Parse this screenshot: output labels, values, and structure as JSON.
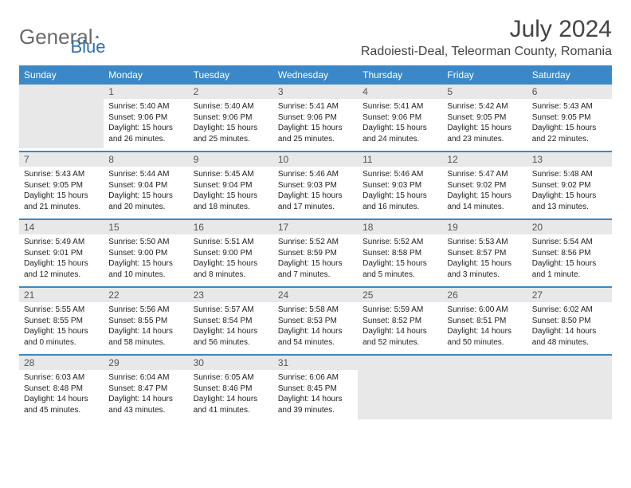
{
  "logo": {
    "text_general": "General",
    "text_blue": "Blue"
  },
  "title": "July 2024",
  "location": "Radoiesti-Deal, Teleorman County, Romania",
  "colors": {
    "header_bg": "#3b88c9",
    "header_text": "#ffffff",
    "daynum_bg": "#e8e8e8",
    "row_border": "#3b88c9"
  },
  "day_headers": [
    "Sunday",
    "Monday",
    "Tuesday",
    "Wednesday",
    "Thursday",
    "Friday",
    "Saturday"
  ],
  "weeks": [
    [
      {
        "num": "",
        "lines": []
      },
      {
        "num": "1",
        "lines": [
          "Sunrise: 5:40 AM",
          "Sunset: 9:06 PM",
          "Daylight: 15 hours",
          "and 26 minutes."
        ]
      },
      {
        "num": "2",
        "lines": [
          "Sunrise: 5:40 AM",
          "Sunset: 9:06 PM",
          "Daylight: 15 hours",
          "and 25 minutes."
        ]
      },
      {
        "num": "3",
        "lines": [
          "Sunrise: 5:41 AM",
          "Sunset: 9:06 PM",
          "Daylight: 15 hours",
          "and 25 minutes."
        ]
      },
      {
        "num": "4",
        "lines": [
          "Sunrise: 5:41 AM",
          "Sunset: 9:06 PM",
          "Daylight: 15 hours",
          "and 24 minutes."
        ]
      },
      {
        "num": "5",
        "lines": [
          "Sunrise: 5:42 AM",
          "Sunset: 9:05 PM",
          "Daylight: 15 hours",
          "and 23 minutes."
        ]
      },
      {
        "num": "6",
        "lines": [
          "Sunrise: 5:43 AM",
          "Sunset: 9:05 PM",
          "Daylight: 15 hours",
          "and 22 minutes."
        ]
      }
    ],
    [
      {
        "num": "7",
        "lines": [
          "Sunrise: 5:43 AM",
          "Sunset: 9:05 PM",
          "Daylight: 15 hours",
          "and 21 minutes."
        ]
      },
      {
        "num": "8",
        "lines": [
          "Sunrise: 5:44 AM",
          "Sunset: 9:04 PM",
          "Daylight: 15 hours",
          "and 20 minutes."
        ]
      },
      {
        "num": "9",
        "lines": [
          "Sunrise: 5:45 AM",
          "Sunset: 9:04 PM",
          "Daylight: 15 hours",
          "and 18 minutes."
        ]
      },
      {
        "num": "10",
        "lines": [
          "Sunrise: 5:46 AM",
          "Sunset: 9:03 PM",
          "Daylight: 15 hours",
          "and 17 minutes."
        ]
      },
      {
        "num": "11",
        "lines": [
          "Sunrise: 5:46 AM",
          "Sunset: 9:03 PM",
          "Daylight: 15 hours",
          "and 16 minutes."
        ]
      },
      {
        "num": "12",
        "lines": [
          "Sunrise: 5:47 AM",
          "Sunset: 9:02 PM",
          "Daylight: 15 hours",
          "and 14 minutes."
        ]
      },
      {
        "num": "13",
        "lines": [
          "Sunrise: 5:48 AM",
          "Sunset: 9:02 PM",
          "Daylight: 15 hours",
          "and 13 minutes."
        ]
      }
    ],
    [
      {
        "num": "14",
        "lines": [
          "Sunrise: 5:49 AM",
          "Sunset: 9:01 PM",
          "Daylight: 15 hours",
          "and 12 minutes."
        ]
      },
      {
        "num": "15",
        "lines": [
          "Sunrise: 5:50 AM",
          "Sunset: 9:00 PM",
          "Daylight: 15 hours",
          "and 10 minutes."
        ]
      },
      {
        "num": "16",
        "lines": [
          "Sunrise: 5:51 AM",
          "Sunset: 9:00 PM",
          "Daylight: 15 hours",
          "and 8 minutes."
        ]
      },
      {
        "num": "17",
        "lines": [
          "Sunrise: 5:52 AM",
          "Sunset: 8:59 PM",
          "Daylight: 15 hours",
          "and 7 minutes."
        ]
      },
      {
        "num": "18",
        "lines": [
          "Sunrise: 5:52 AM",
          "Sunset: 8:58 PM",
          "Daylight: 15 hours",
          "and 5 minutes."
        ]
      },
      {
        "num": "19",
        "lines": [
          "Sunrise: 5:53 AM",
          "Sunset: 8:57 PM",
          "Daylight: 15 hours",
          "and 3 minutes."
        ]
      },
      {
        "num": "20",
        "lines": [
          "Sunrise: 5:54 AM",
          "Sunset: 8:56 PM",
          "Daylight: 15 hours",
          "and 1 minute."
        ]
      }
    ],
    [
      {
        "num": "21",
        "lines": [
          "Sunrise: 5:55 AM",
          "Sunset: 8:55 PM",
          "Daylight: 15 hours",
          "and 0 minutes."
        ]
      },
      {
        "num": "22",
        "lines": [
          "Sunrise: 5:56 AM",
          "Sunset: 8:55 PM",
          "Daylight: 14 hours",
          "and 58 minutes."
        ]
      },
      {
        "num": "23",
        "lines": [
          "Sunrise: 5:57 AM",
          "Sunset: 8:54 PM",
          "Daylight: 14 hours",
          "and 56 minutes."
        ]
      },
      {
        "num": "24",
        "lines": [
          "Sunrise: 5:58 AM",
          "Sunset: 8:53 PM",
          "Daylight: 14 hours",
          "and 54 minutes."
        ]
      },
      {
        "num": "25",
        "lines": [
          "Sunrise: 5:59 AM",
          "Sunset: 8:52 PM",
          "Daylight: 14 hours",
          "and 52 minutes."
        ]
      },
      {
        "num": "26",
        "lines": [
          "Sunrise: 6:00 AM",
          "Sunset: 8:51 PM",
          "Daylight: 14 hours",
          "and 50 minutes."
        ]
      },
      {
        "num": "27",
        "lines": [
          "Sunrise: 6:02 AM",
          "Sunset: 8:50 PM",
          "Daylight: 14 hours",
          "and 48 minutes."
        ]
      }
    ],
    [
      {
        "num": "28",
        "lines": [
          "Sunrise: 6:03 AM",
          "Sunset: 8:48 PM",
          "Daylight: 14 hours",
          "and 45 minutes."
        ]
      },
      {
        "num": "29",
        "lines": [
          "Sunrise: 6:04 AM",
          "Sunset: 8:47 PM",
          "Daylight: 14 hours",
          "and 43 minutes."
        ]
      },
      {
        "num": "30",
        "lines": [
          "Sunrise: 6:05 AM",
          "Sunset: 8:46 PM",
          "Daylight: 14 hours",
          "and 41 minutes."
        ]
      },
      {
        "num": "31",
        "lines": [
          "Sunrise: 6:06 AM",
          "Sunset: 8:45 PM",
          "Daylight: 14 hours",
          "and 39 minutes."
        ]
      },
      {
        "num": "",
        "lines": []
      },
      {
        "num": "",
        "lines": []
      },
      {
        "num": "",
        "lines": []
      }
    ]
  ]
}
